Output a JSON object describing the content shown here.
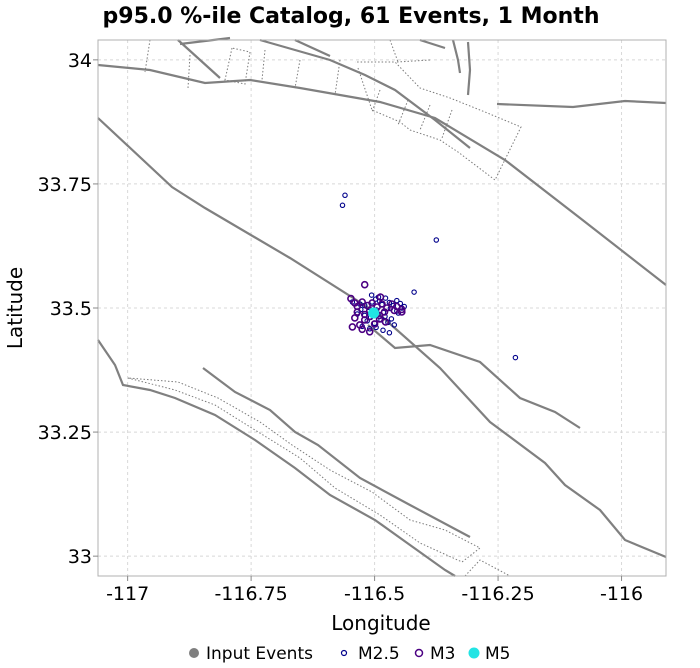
{
  "chart_data": {
    "type": "scatter",
    "title": "p95.0 %-ile Catalog, 61 Events, 1 Month",
    "xlabel": "Longitude",
    "ylabel": "Latitude",
    "xlim": [
      -117.06,
      -115.91
    ],
    "ylim": [
      32.96,
      34.04
    ],
    "x_ticks": [
      {
        "value": -117,
        "label": "-117"
      },
      {
        "value": -116.75,
        "label": "-116.75"
      },
      {
        "value": -116.5,
        "label": "-116.5"
      },
      {
        "value": -116.25,
        "label": "-116.25"
      },
      {
        "value": -116,
        "label": "-116"
      }
    ],
    "y_ticks": [
      {
        "value": 34,
        "label": "34"
      },
      {
        "value": 33.75,
        "label": "33.75"
      },
      {
        "value": 33.5,
        "label": "33.5"
      },
      {
        "value": 33.25,
        "label": "33.25"
      },
      {
        "value": 33,
        "label": "33"
      }
    ],
    "grid": true,
    "legend_position": "bottom-center",
    "legend": [
      {
        "name": "Input Events",
        "marker": "filled-circle",
        "color": "#7f7f7f"
      },
      {
        "name": "M2.5",
        "marker": "open-circle-small",
        "color": "#00008b"
      },
      {
        "name": "M3",
        "marker": "open-circle",
        "color": "#4b0082"
      },
      {
        "name": "M5",
        "marker": "filled-circle",
        "color": "#22e4e4"
      }
    ],
    "series": [
      {
        "name": "M2.5",
        "color": "#00008b",
        "x": [
          -116.56,
          -116.565,
          -116.375,
          -116.42,
          -116.215,
          -116.545,
          -116.53,
          -116.52,
          -116.505,
          -116.498,
          -116.49,
          -116.485,
          -116.478,
          -116.47,
          -116.462,
          -116.455,
          -116.448,
          -116.44,
          -116.528,
          -116.512,
          -116.496,
          -116.482,
          -116.468,
          -116.455,
          -116.535,
          -116.52,
          -116.508,
          -116.493,
          -116.479,
          -116.466,
          -116.452,
          -116.515,
          -116.5,
          -116.487,
          -116.473,
          -116.46,
          -116.445,
          -116.525,
          -116.51,
          -116.497,
          -116.483,
          -116.47,
          -116.506,
          -116.492
        ],
        "y": [
          33.727,
          33.707,
          33.637,
          33.532,
          33.4,
          33.512,
          33.508,
          33.505,
          33.512,
          33.518,
          33.514,
          33.507,
          33.52,
          33.511,
          33.505,
          33.515,
          33.509,
          33.503,
          33.497,
          33.493,
          33.496,
          33.491,
          33.499,
          33.494,
          33.488,
          33.485,
          33.481,
          33.487,
          33.483,
          33.478,
          33.49,
          33.474,
          33.469,
          33.476,
          33.471,
          33.466,
          33.5,
          33.463,
          33.458,
          33.461,
          33.455,
          33.45,
          33.526,
          33.522
        ]
      },
      {
        "name": "M3",
        "color": "#4b0082",
        "x": [
          -116.52,
          -116.548,
          -116.54,
          -116.535,
          -116.525,
          -116.515,
          -116.505,
          -116.495,
          -116.485,
          -116.475,
          -116.465,
          -116.455,
          -116.445,
          -116.535,
          -116.52,
          -116.51,
          -116.5,
          -116.49,
          -116.48,
          -116.46,
          -116.445,
          -116.54,
          -116.52,
          -116.51,
          -116.49,
          -116.478,
          -116.53,
          -116.545,
          -116.525,
          -116.51,
          -116.5,
          -116.488
        ],
        "y": [
          33.547,
          33.519,
          33.51,
          33.503,
          33.512,
          33.505,
          33.51,
          33.502,
          33.508,
          33.5,
          33.508,
          33.503,
          33.497,
          33.492,
          33.487,
          33.495,
          33.49,
          33.485,
          33.492,
          33.495,
          33.492,
          33.48,
          33.476,
          33.483,
          33.478,
          33.472,
          33.466,
          33.462,
          33.457,
          33.452,
          33.468,
          33.522
        ]
      },
      {
        "name": "M5",
        "color": "#22e4e4",
        "x": [
          -116.502
        ],
        "y": [
          33.49
        ]
      }
    ]
  }
}
